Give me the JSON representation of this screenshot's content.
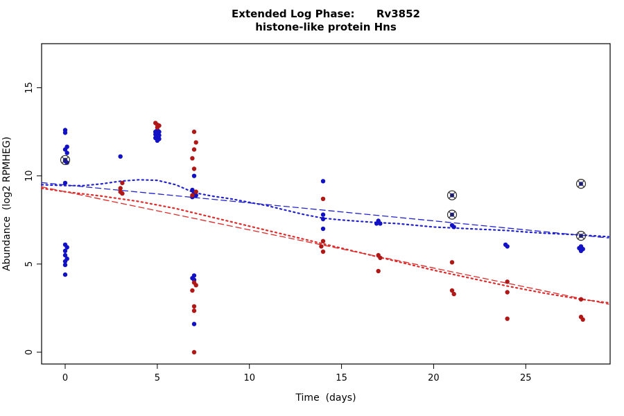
{
  "chart_data": {
    "type": "scatter",
    "title_line1": "Extended Log Phase:      Rv3852",
    "title_line2": "histone-like protein Hns",
    "xlabel": "Time  (days)",
    "ylabel": "Abundance  (log2 RPMHEG)",
    "xlim": [
      -1.28,
      29.58
    ],
    "ylim": [
      -0.67,
      17.5
    ],
    "xticks": [
      0,
      5,
      10,
      15,
      20,
      25
    ],
    "yticks": [
      0,
      5,
      10,
      15
    ],
    "grid": false,
    "legend": "none",
    "colors": {
      "blue": "#1212C4",
      "red": "#B01818",
      "blue_line": "#2222CC",
      "red_line": "#DD2A2A",
      "circle_marker": "#2A2A2A",
      "box": "#000000"
    },
    "series": [
      {
        "name": "blue-points",
        "color": "#1212C4",
        "points": [
          [
            0,
            12.6
          ],
          [
            0,
            12.45
          ],
          [
            0.1,
            11.65
          ],
          [
            0,
            11.5
          ],
          [
            0.1,
            11.3
          ],
          [
            0,
            10.9
          ],
          [
            0,
            10.85
          ],
          [
            0.1,
            10.75
          ],
          [
            0,
            9.6
          ],
          [
            0,
            6.1
          ],
          [
            0.1,
            5.95
          ],
          [
            0,
            5.75
          ],
          [
            0,
            5.5
          ],
          [
            0.1,
            5.3
          ],
          [
            0,
            5.15
          ],
          [
            0,
            4.95
          ],
          [
            0,
            4.4
          ],
          [
            3,
            11.1
          ],
          [
            5,
            12.6
          ],
          [
            4.9,
            12.5
          ],
          [
            5.1,
            12.5
          ],
          [
            5,
            12.4
          ],
          [
            4.9,
            12.35
          ],
          [
            5.1,
            12.3
          ],
          [
            5,
            12.25
          ],
          [
            4.9,
            12.15
          ],
          [
            5.1,
            12.1
          ],
          [
            5,
            12.0
          ],
          [
            7,
            10.0
          ],
          [
            6.9,
            9.2
          ],
          [
            7,
            9.05
          ],
          [
            7.1,
            8.9
          ],
          [
            6.9,
            8.8
          ],
          [
            7,
            4.35
          ],
          [
            6.9,
            4.2
          ],
          [
            7,
            4.1
          ],
          [
            7,
            1.6
          ],
          [
            14,
            9.7
          ],
          [
            14,
            7.8
          ],
          [
            14,
            7.55
          ],
          [
            14,
            7.0
          ],
          [
            17,
            7.45
          ],
          [
            16.9,
            7.3
          ],
          [
            17.1,
            7.3
          ],
          [
            21,
            7.2
          ],
          [
            21.1,
            7.1
          ],
          [
            23.9,
            6.1
          ],
          [
            24,
            6.0
          ],
          [
            28,
            6.0
          ],
          [
            27.9,
            5.9
          ],
          [
            28.1,
            5.85
          ],
          [
            28,
            5.75
          ]
        ]
      },
      {
        "name": "red-points",
        "color": "#B01818",
        "points": [
          [
            3.1,
            9.6
          ],
          [
            3,
            9.3
          ],
          [
            3,
            9.1
          ],
          [
            3.1,
            9.0
          ],
          [
            4.9,
            13.0
          ],
          [
            5,
            12.9
          ],
          [
            5.1,
            12.85
          ],
          [
            5,
            12.75
          ],
          [
            7,
            12.5
          ],
          [
            7.1,
            11.9
          ],
          [
            7,
            11.5
          ],
          [
            6.9,
            11.0
          ],
          [
            7,
            10.4
          ],
          [
            7.1,
            9.1
          ],
          [
            6.9,
            8.9
          ],
          [
            7,
            3.95
          ],
          [
            7.1,
            3.8
          ],
          [
            6.9,
            3.5
          ],
          [
            7,
            2.6
          ],
          [
            7,
            2.35
          ],
          [
            7,
            0.0
          ],
          [
            14,
            8.7
          ],
          [
            14,
            6.3
          ],
          [
            13.9,
            6.0
          ],
          [
            14,
            5.7
          ],
          [
            17,
            5.5
          ],
          [
            17.1,
            5.35
          ],
          [
            17,
            4.6
          ],
          [
            21,
            5.1
          ],
          [
            21,
            3.5
          ],
          [
            21.1,
            3.3
          ],
          [
            24,
            4.0
          ],
          [
            24,
            3.4
          ],
          [
            24,
            1.9
          ],
          [
            28,
            3.0
          ],
          [
            28,
            2.0
          ],
          [
            28.1,
            1.85
          ]
        ]
      }
    ],
    "circled_points": [
      [
        0,
        10.9
      ],
      [
        21,
        8.9
      ],
      [
        21,
        7.8
      ],
      [
        28,
        9.55
      ],
      [
        28,
        6.6
      ]
    ],
    "lines": [
      {
        "name": "blue-dashed-fit",
        "color": "#2222CC",
        "style": "dash",
        "width": 1.3,
        "points": [
          [
            -1.28,
            9.62
          ],
          [
            29.5,
            6.48
          ]
        ]
      },
      {
        "name": "red-dashed-fit",
        "color": "#DD2A2A",
        "style": "dash",
        "width": 1.3,
        "points": [
          [
            -1.28,
            9.38
          ],
          [
            29.5,
            2.72
          ]
        ]
      },
      {
        "name": "blue-dotted-smooth",
        "color": "#2222CC",
        "style": "dot",
        "width": 2.2,
        "points": [
          [
            -1.28,
            9.5
          ],
          [
            0,
            9.45
          ],
          [
            1,
            9.45
          ],
          [
            2,
            9.55
          ],
          [
            3,
            9.7
          ],
          [
            4,
            9.78
          ],
          [
            5,
            9.75
          ],
          [
            6,
            9.5
          ],
          [
            7,
            9.05
          ],
          [
            8,
            8.85
          ],
          [
            9,
            8.7
          ],
          [
            10,
            8.5
          ],
          [
            11,
            8.3
          ],
          [
            12,
            8.05
          ],
          [
            13,
            7.8
          ],
          [
            14,
            7.6
          ],
          [
            15,
            7.5
          ],
          [
            16,
            7.42
          ],
          [
            17,
            7.35
          ],
          [
            18,
            7.3
          ],
          [
            19,
            7.2
          ],
          [
            20,
            7.1
          ],
          [
            21,
            7.05
          ],
          [
            22,
            7.0
          ],
          [
            23,
            6.95
          ],
          [
            24,
            6.9
          ],
          [
            25,
            6.82
          ],
          [
            26,
            6.75
          ],
          [
            27,
            6.7
          ],
          [
            28,
            6.65
          ],
          [
            29.5,
            6.55
          ]
        ]
      },
      {
        "name": "red-dotted-smooth",
        "color": "#DD2A2A",
        "style": "dot",
        "width": 2.2,
        "points": [
          [
            -1.28,
            9.3
          ],
          [
            0,
            9.1
          ],
          [
            2,
            8.85
          ],
          [
            4,
            8.55
          ],
          [
            6,
            8.15
          ],
          [
            7,
            7.9
          ],
          [
            8,
            7.65
          ],
          [
            10,
            7.15
          ],
          [
            12,
            6.65
          ],
          [
            14,
            6.15
          ],
          [
            16,
            5.65
          ],
          [
            18,
            5.15
          ],
          [
            20,
            4.65
          ],
          [
            22,
            4.2
          ],
          [
            24,
            3.75
          ],
          [
            26,
            3.35
          ],
          [
            28,
            3.0
          ],
          [
            29.5,
            2.8
          ]
        ]
      }
    ]
  }
}
